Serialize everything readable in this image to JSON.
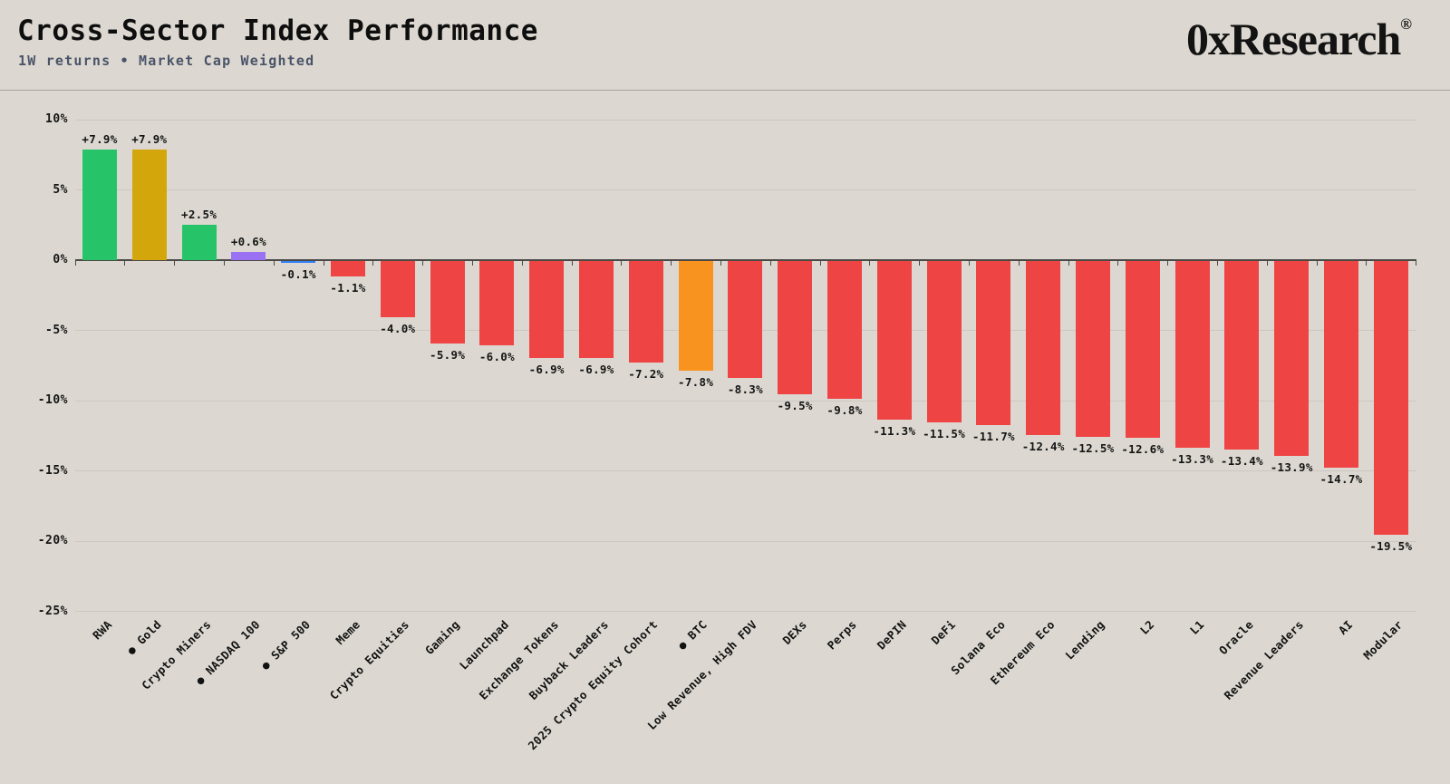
{
  "header": {
    "title": "Cross-Sector Index Performance",
    "subtitle": "1W returns • Market Cap Weighted",
    "logo_text": "0xResearch",
    "logo_reg": "®"
  },
  "chart_data": {
    "type": "bar",
    "title": "Cross-Sector Index Performance",
    "subtitle": "1W returns • Market Cap Weighted",
    "unit": "%",
    "ylim": [
      -25,
      10
    ],
    "yticks": [
      10,
      5,
      0,
      -5,
      -10,
      -15,
      -20,
      -25
    ],
    "ytick_labels": [
      "10%",
      "5%",
      "0%",
      "-5%",
      "-10%",
      "-15%",
      "-20%",
      "-25%"
    ],
    "grid": true,
    "legend": "none",
    "x_label_rotation_deg": 45,
    "categories": [
      "RWA",
      "Gold",
      "Crypto Miners",
      "NASDAQ 100",
      "S&P 500",
      "Meme",
      "Crypto Equities",
      "Gaming",
      "Launchpad",
      "Exchange Tokens",
      "Buyback Leaders",
      "2025 Crypto Equity Cohort",
      "BTC",
      "Low Revenue, High FDV",
      "DEXs",
      "Perps",
      "DePIN",
      "DeFi",
      "Solana Eco",
      "Ethereum Eco",
      "Lending",
      "L2",
      "L1",
      "Oracle",
      "Revenue Leaders",
      "AI",
      "Modular"
    ],
    "values": [
      7.9,
      7.9,
      2.5,
      0.6,
      -0.1,
      -1.1,
      -4.0,
      -5.9,
      -6.0,
      -6.9,
      -6.9,
      -7.2,
      -7.8,
      -8.3,
      -9.5,
      -9.8,
      -11.3,
      -11.5,
      -11.7,
      -12.4,
      -12.5,
      -12.6,
      -13.3,
      -13.4,
      -13.9,
      -14.7,
      -19.5
    ],
    "value_labels": [
      "+7.9%",
      "+7.9%",
      "+2.5%",
      "+0.6%",
      "-0.1%",
      "-1.1%",
      "-4.0%",
      "-5.9%",
      "-6.0%",
      "-6.9%",
      "-6.9%",
      "-7.2%",
      "-7.8%",
      "-8.3%",
      "-9.5%",
      "-9.8%",
      "-11.3%",
      "-11.5%",
      "-11.7%",
      "-12.4%",
      "-12.5%",
      "-12.6%",
      "-13.3%",
      "-13.4%",
      "-13.9%",
      "-14.7%",
      "-19.5%"
    ],
    "bullet_marker_flags": [
      false,
      true,
      false,
      true,
      true,
      false,
      false,
      false,
      false,
      false,
      false,
      false,
      true,
      false,
      false,
      false,
      false,
      false,
      false,
      false,
      false,
      false,
      false,
      false,
      false,
      false,
      false
    ],
    "bullet_glyph": "●",
    "bar_colors": [
      "#26c368",
      "#d3a70c",
      "#26c368",
      "#9a71f2",
      "#2e7ef5",
      "#ef4444",
      "#ef4444",
      "#ef4444",
      "#ef4444",
      "#ef4444",
      "#ef4444",
      "#ef4444",
      "#f7931e",
      "#ef4444",
      "#ef4444",
      "#ef4444",
      "#ef4444",
      "#ef4444",
      "#ef4444",
      "#ef4444",
      "#ef4444",
      "#ef4444",
      "#ef4444",
      "#ef4444",
      "#ef4444",
      "#ef4444",
      "#ef4444"
    ],
    "palette": {
      "positive_green": "#26c368",
      "gold": "#d3a70c",
      "nasdaq_purple": "#9a71f2",
      "sp500_blue": "#2e7ef5",
      "btc_orange": "#f7931e",
      "negative_red": "#ef4444",
      "background": "#dcd8d1",
      "gridline": "#ccc8c1",
      "axis": "#4b4945",
      "subtitle": "#4a5468",
      "text": "#141414"
    }
  }
}
